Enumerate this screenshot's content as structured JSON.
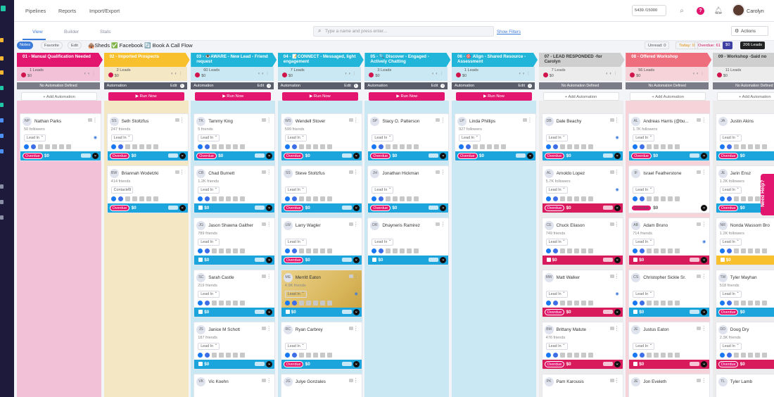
{
  "nav": {
    "pipelines": "Pipelines",
    "reports": "Reports",
    "import_export": "Import/Export"
  },
  "credits": "5439 /15000",
  "user_name": "Carolyn",
  "view_tabs": {
    "view": "View",
    "builder": "Builder",
    "stats": "Stats"
  },
  "search_placeholder": "Type a name and press enter...",
  "show_filters": "Show Filters",
  "actions_label": "Actions",
  "chips": {
    "notes": "Notes",
    "favorite": "Favorite",
    "edit": "Edit",
    "pipeline_title": "🛖Sheds ✅ Facebook 🔄 Book A Call Flow",
    "unread": "Unread: 0",
    "today": "Today: 0",
    "overdue": "Overdue: 61",
    "amount": "$0",
    "leads": "206 Leads"
  },
  "columns": [
    {
      "title": "01 - Manual Qualification Needed",
      "color": "#e2166f",
      "light": "#f2c1d8",
      "count": "1 Leads",
      "amount": "$0",
      "auto_label": "No Automation Defined",
      "auto_defined": false,
      "button": "Add Automation",
      "cards": [
        {
          "initials": "NP",
          "name": "Nathan Parks",
          "followers": "50 followers",
          "status": "Lead In",
          "eye": true,
          "overdue": true,
          "amount": "$0",
          "foot": "blue"
        }
      ]
    },
    {
      "title": "02 - Imported Prospects",
      "color": "#f7c02c",
      "light": "#f4e7c4",
      "count": "2 Leads",
      "amount": "$0",
      "auto_label": "Automation",
      "auto_defined": true,
      "edit": "Edit",
      "button": "Run Now",
      "cards": [
        {
          "initials": "SS",
          "name": "Seth Stoltzfus",
          "followers": "247 friends",
          "status": "Lead In",
          "overdue": true,
          "amount": "$0",
          "foot": "blue"
        },
        {
          "initials": "BW",
          "name": "Briannah Wodetzki",
          "followers": "414 friends",
          "status": "Contacted",
          "overdue": true,
          "amount": "$0",
          "foot": "blue"
        }
      ]
    },
    {
      "title": "03 - 👁️AWARE - New Lead - Friend request",
      "color": "#21b6d9",
      "light": "#c9e8f3",
      "count": "60 Leads",
      "amount": "$0",
      "auto_label": "Automation",
      "auto_defined": true,
      "edit": "Edit",
      "button": "Run Now",
      "cards": [
        {
          "initials": "TK",
          "name": "Tammy King",
          "followers": "5 friends",
          "status": "Lead In",
          "overdue": true,
          "amount": "$0",
          "foot": "blue"
        },
        {
          "initials": "CB",
          "name": "Chad Burnett",
          "followers": "1.2K friends",
          "status": "Lead In",
          "overdue": false,
          "amount": "$0",
          "foot": "blue"
        },
        {
          "initials": "JG",
          "name": "Jason Shawna Gaither",
          "followers": "789 friends",
          "status": "Lead In",
          "overdue": false,
          "amount": "$0",
          "foot": "blue"
        },
        {
          "initials": "SC",
          "name": "Sarah Castle",
          "followers": "219 friends",
          "status": "Lead In",
          "overdue": false,
          "amount": "$0",
          "foot": "blue"
        },
        {
          "initials": "JS",
          "name": "Janice M Schott",
          "followers": "187 friends",
          "status": "Lead In",
          "overdue": false,
          "amount": "$0",
          "foot": "blue"
        },
        {
          "initials": "VK",
          "name": "Vic Koehn",
          "followers": "",
          "status": "",
          "overdue": false,
          "amount": "",
          "foot": "none"
        }
      ]
    },
    {
      "title": "04 - 📝CONNECT - Messaged, light engagement",
      "color": "#21b6d9",
      "light": "#c9e8f3",
      "count": "7 Leads",
      "amount": "$0",
      "auto_label": "Automation",
      "auto_defined": true,
      "edit": "Edit",
      "button": "Run Now",
      "cards": [
        {
          "initials": "WS",
          "name": "Wendell Stover",
          "followers": "599 friends",
          "status": "Lead In",
          "overdue": true,
          "amount": "$0",
          "foot": "blue"
        },
        {
          "initials": "SS",
          "name": "Steve Stoltzfus",
          "followers": "",
          "status": "Lead In",
          "overdue": true,
          "amount": "$0",
          "foot": "blue"
        },
        {
          "initials": "LW",
          "name": "Larry Wagler",
          "followers": "",
          "status": "Lead In",
          "overdue": true,
          "amount": "$0",
          "foot": "blue"
        },
        {
          "initials": "ME",
          "name": "Merritt Eaton",
          "followers": "4.9K friends",
          "status": "Lead In",
          "eye": true,
          "overdue": false,
          "amount": "$0",
          "foot": "blue",
          "gold": true
        },
        {
          "initials": "RC",
          "name": "Ryan Carbrey",
          "followers": "",
          "status": "Lead In",
          "overdue": true,
          "amount": "$0",
          "foot": "blue"
        },
        {
          "initials": "JG",
          "name": "Julye Gonzales",
          "followers": "",
          "status": "",
          "overdue": false,
          "amount": "",
          "foot": "none"
        }
      ]
    },
    {
      "title": "05 - 🔍 Discover - Engaged - Actively Chatting",
      "color": "#21b6d9",
      "light": "#c9e8f3",
      "count": "3 Leads",
      "amount": "$0",
      "auto_label": "Automation",
      "auto_defined": true,
      "edit": "Edit",
      "button": "Run Now",
      "cards": [
        {
          "initials": "SP",
          "name": "Stacy O. Patterson",
          "followers": "",
          "status": "Lead In",
          "overdue": true,
          "amount": "$0",
          "foot": "blue"
        },
        {
          "initials": "JH",
          "name": "Jonathan Hickman",
          "followers": "",
          "status": "Lead In",
          "overdue": true,
          "amount": "$0",
          "foot": "blue"
        },
        {
          "initials": "DR",
          "name": "Dhayneris Ramirez",
          "followers": "",
          "status": "Lead In",
          "overdue": false,
          "amount": "$0",
          "foot": "blue"
        }
      ]
    },
    {
      "title": "06 - 🎯 Align - Shared Resource -Assessment",
      "color": "#21b6d9",
      "light": "#c9e8f3",
      "count": "1 Leads",
      "amount": "$0",
      "auto_label": "Automation",
      "auto_defined": true,
      "edit": "Edit",
      "button": "Run Now",
      "cards": [
        {
          "initials": "LP",
          "name": "Linda Phillips",
          "followers": "927 followers",
          "status": "Lead In",
          "overdue": true,
          "amount": "$0",
          "foot": "blue"
        }
      ]
    },
    {
      "title": "07 - LEAD RESPONDED -for Carolyn",
      "color": "#cfcfcf",
      "light": "#ececec",
      "count": "7 Leads",
      "amount": "$0",
      "auto_label": "No Automation Defined",
      "auto_defined": false,
      "button": "Add Automation",
      "dark": true,
      "cards": [
        {
          "initials": "DB",
          "name": "Dale Beachy",
          "followers": "",
          "status": "Lead In",
          "eye": true,
          "overdue": true,
          "amount": "$0",
          "foot": "blue"
        },
        {
          "initials": "AL",
          "name": "Arnoldo Lopez",
          "followers": "5.7K followers",
          "status": "Lead In",
          "eye": true,
          "overdue": true,
          "amount": "$0",
          "foot": "red"
        },
        {
          "initials": "CE",
          "name": "Chuck Eliason",
          "followers": "749 friends",
          "status": "Lead In",
          "overdue": false,
          "amount": "$0",
          "foot": "red"
        },
        {
          "initials": "MW",
          "name": "Matt Walker",
          "followers": "",
          "status": "Lead In",
          "eye": true,
          "overdue": true,
          "amount": "$0",
          "foot": "red"
        },
        {
          "initials": "BM",
          "name": "Brittany Matute",
          "followers": "476 friends",
          "status": "Lead In",
          "overdue": true,
          "amount": "$0",
          "foot": "red"
        },
        {
          "initials": "PK",
          "name": "Pam Karousis",
          "followers": "",
          "status": "",
          "overdue": false,
          "amount": "",
          "foot": "none"
        }
      ]
    },
    {
      "title": "08 - Offered Workshop",
      "color": "#ef6e7d",
      "light": "#f6d3d8",
      "count": "56 Leads",
      "amount": "$0",
      "auto_label": "No Automation Defined",
      "auto_defined": false,
      "button": "Add Automation",
      "cards": [
        {
          "initials": "AL",
          "name": "Andreas Harris (@bu...",
          "followers": "1.7K followers",
          "status": "Lead In",
          "overdue": true,
          "amount": "$0",
          "foot": "blue"
        },
        {
          "initials": "IF",
          "name": "Israel Featherstone",
          "followers": "",
          "status": "Lead In",
          "overdue": true,
          "amount": "$0",
          "foot": "white"
        },
        {
          "initials": "AB",
          "name": "Adam Bruno",
          "followers": "714 friends",
          "status": "Lead In",
          "eye": true,
          "overdue": false,
          "amount": "$0",
          "foot": "red"
        },
        {
          "initials": "CS",
          "name": "Christopher Sickle Sr.",
          "followers": "",
          "status": "Lead In",
          "overdue": false,
          "amount": "$0",
          "foot": "blue"
        },
        {
          "initials": "JE",
          "name": "Justus Eaton",
          "followers": "",
          "status": "Lead In",
          "overdue": false,
          "amount": "$0",
          "foot": "red"
        },
        {
          "initials": "JE",
          "name": "Jon Eveleth",
          "followers": "",
          "status": "",
          "overdue": false,
          "amount": "",
          "foot": "none"
        }
      ]
    },
    {
      "title": "09 - Workshop -Said no",
      "color": "#cfcfcf",
      "light": "#ececec",
      "count": "11 Leads",
      "amount": "$0",
      "auto_label": "No Automation Defined",
      "auto_defined": false,
      "button": "Add Automation",
      "dark": true,
      "cards": [
        {
          "initials": "JA",
          "name": "Justin Akins",
          "followers": "",
          "status": "Lead In",
          "overdue": true,
          "amount": "$0",
          "foot": "blue"
        },
        {
          "initials": "JE",
          "name": "Jarin Ensz",
          "followers": "1.2K followers",
          "status": "Lead In",
          "overdue": true,
          "amount": "$0",
          "foot": "blue"
        },
        {
          "initials": "NR",
          "name": "Nonda Wassom Bro",
          "followers": "1.2K followers",
          "status": "Lead In",
          "overdue": false,
          "amount": "$0",
          "foot": "yellow"
        },
        {
          "initials": "TM",
          "name": "Tyler Mayhan",
          "followers": "518 friends",
          "status": "Lead In",
          "overdue": true,
          "amount": "$0",
          "foot": "blue"
        },
        {
          "initials": "DD",
          "name": "Doug Dry",
          "followers": "2.3K friends",
          "status": "Lead In",
          "overdue": true,
          "amount": "$0",
          "foot": "red"
        },
        {
          "initials": "TL",
          "name": "Tyler Lamb",
          "followers": "",
          "status": "",
          "overdue": false,
          "amount": "",
          "foot": "none"
        }
      ]
    }
  ],
  "overdue_label": "Overdue",
  "need_help": "Need Help?"
}
